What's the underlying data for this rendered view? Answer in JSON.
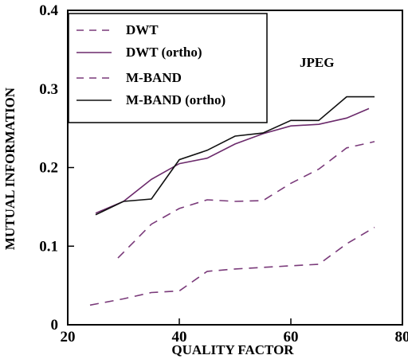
{
  "chart_data": {
    "type": "line",
    "title": "",
    "xlabel": "QUALITY FACTOR",
    "ylabel": "MUTUAL INFORMATION",
    "xlim": [
      20,
      80
    ],
    "ylim": [
      0,
      0.4
    ],
    "xticks": [
      20,
      40,
      60,
      80
    ],
    "xtick_labels": [
      "20",
      "40",
      "60",
      "80"
    ],
    "yticks": [
      0,
      0.1,
      0.2,
      0.3,
      0.4
    ],
    "ytick_labels": [
      "0",
      "0.1",
      "0.2",
      "0.3",
      "0.4"
    ],
    "grid": false,
    "legend_position": "top-left",
    "annotation": "JPEG",
    "series": [
      {
        "name": "DWT",
        "color": "#7a3a7a",
        "style": "dashed",
        "x": [
          29,
          35,
          40,
          45,
          50,
          55,
          60,
          65,
          70,
          75
        ],
        "y": [
          0.085,
          0.128,
          0.148,
          0.159,
          0.157,
          0.158,
          0.18,
          0.198,
          0.225,
          0.233
        ]
      },
      {
        "name": "DWT (ortho)",
        "color": "#6b2a6b",
        "style": "solid",
        "x": [
          25,
          30,
          35,
          40,
          45,
          50,
          55,
          60,
          65,
          70,
          74
        ],
        "y": [
          0.142,
          0.157,
          0.185,
          0.205,
          0.212,
          0.23,
          0.243,
          0.253,
          0.255,
          0.263,
          0.275
        ]
      },
      {
        "name": "M-BAND",
        "color": "#7a3a7a",
        "style": "dashed",
        "x": [
          24,
          30,
          35,
          40,
          45,
          50,
          55,
          60,
          65,
          70,
          75
        ],
        "y": [
          0.025,
          0.033,
          0.041,
          0.043,
          0.068,
          0.071,
          0.073,
          0.075,
          0.077,
          0.103,
          0.124
        ]
      },
      {
        "name": "M-BAND (ortho)",
        "color": "#111111",
        "style": "solid",
        "x": [
          25,
          30,
          35,
          40,
          45,
          50,
          55,
          60,
          65,
          70,
          75
        ],
        "y": [
          0.14,
          0.157,
          0.16,
          0.21,
          0.222,
          0.24,
          0.244,
          0.26,
          0.26,
          0.29,
          0.29
        ]
      }
    ]
  }
}
